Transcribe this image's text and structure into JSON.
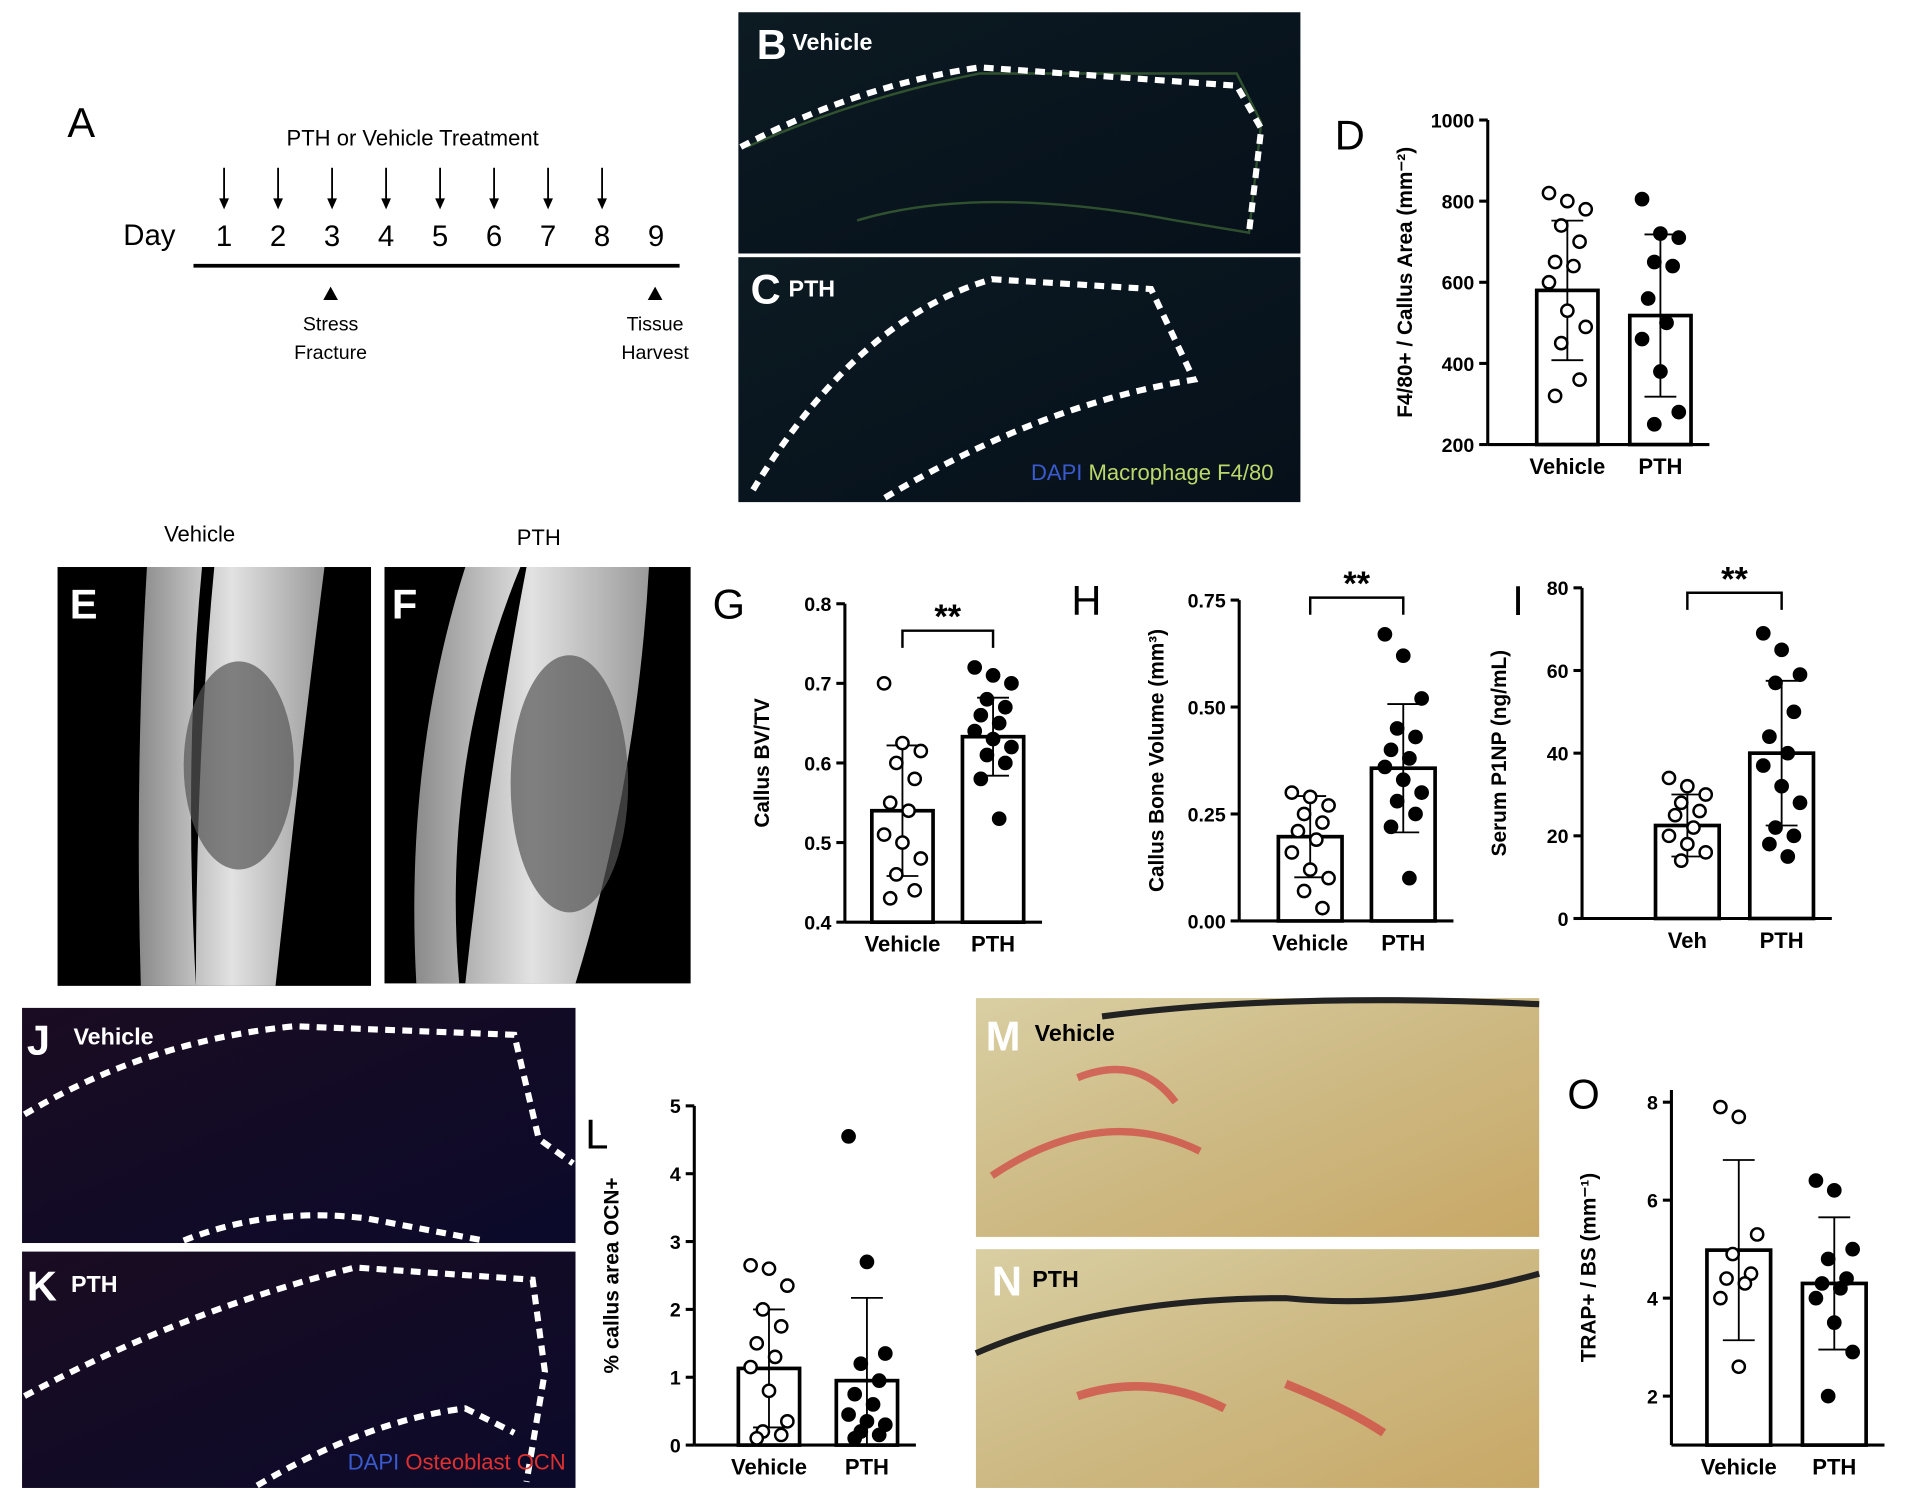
{
  "panels": {
    "A": {
      "letter": "A",
      "title": "PTH or Vehicle Treatment",
      "day_label": "Day",
      "days": [
        1,
        2,
        3,
        4,
        5,
        6,
        7,
        8,
        9
      ],
      "markers": [
        {
          "lines": [
            "Stress",
            "Fracture"
          ]
        },
        {
          "lines": [
            "Tissue",
            "Harvest"
          ]
        }
      ]
    },
    "B": {
      "letter": "B",
      "label": "Vehicle"
    },
    "C": {
      "letter": "C",
      "label": "PTH",
      "legend": [
        "DAPI",
        "Macrophage F4/80"
      ]
    },
    "E": {
      "letter": "E",
      "title": "Vehicle"
    },
    "F": {
      "letter": "F",
      "title": "PTH"
    },
    "J": {
      "letter": "J",
      "label": "Vehicle"
    },
    "K": {
      "letter": "K",
      "label": "PTH",
      "legend": [
        "DAPI",
        "Osteoblast OCN"
      ]
    },
    "M": {
      "letter": "M",
      "label": "Vehicle"
    },
    "N": {
      "letter": "N",
      "label": "PTH"
    }
  },
  "chart_data": [
    {
      "type": "bar",
      "panel": "D",
      "ylabel": "F4/80+ / Callus Area (mm⁻²)",
      "categories": [
        "Vehicle",
        "PTH"
      ],
      "values": [
        580,
        518
      ],
      "errors": [
        172,
        200
      ],
      "marker_fill": [
        "open",
        "filled"
      ],
      "points": [
        [
          820,
          800,
          780,
          740,
          700,
          650,
          640,
          600,
          530,
          490,
          450,
          360,
          320
        ],
        [
          805,
          720,
          710,
          650,
          640,
          560,
          500,
          460,
          380,
          280,
          250
        ]
      ],
      "ylim": [
        200,
        1000
      ],
      "yticks": [
        200,
        400,
        600,
        800,
        1000
      ]
    },
    {
      "type": "bar",
      "panel": "G",
      "ylabel": "Callus BV/TV",
      "categories": [
        "Vehicle",
        "PTH"
      ],
      "values": [
        0.54,
        0.633
      ],
      "errors": [
        0.082,
        0.049
      ],
      "marker_fill": [
        "open",
        "filled"
      ],
      "significance": "**",
      "points": [
        [
          0.7,
          0.625,
          0.615,
          0.6,
          0.58,
          0.55,
          0.54,
          0.51,
          0.5,
          0.48,
          0.46,
          0.44,
          0.43
        ],
        [
          0.72,
          0.71,
          0.7,
          0.68,
          0.67,
          0.66,
          0.65,
          0.64,
          0.63,
          0.62,
          0.61,
          0.6,
          0.58,
          0.53
        ]
      ],
      "ylim": [
        0.4,
        0.8
      ],
      "yticks": [
        0.4,
        0.5,
        0.6,
        0.7,
        0.8
      ]
    },
    {
      "type": "bar",
      "panel": "H",
      "ylabel": "Callus Bone Volume (mm³)",
      "categories": [
        "Vehicle",
        "PTH"
      ],
      "values": [
        0.197,
        0.357
      ],
      "errors": [
        0.095,
        0.15
      ],
      "marker_fill": [
        "open",
        "filled"
      ],
      "significance": "**",
      "points": [
        [
          0.3,
          0.29,
          0.27,
          0.25,
          0.23,
          0.21,
          0.19,
          0.16,
          0.12,
          0.1,
          0.07,
          0.03
        ],
        [
          0.67,
          0.62,
          0.52,
          0.45,
          0.43,
          0.4,
          0.38,
          0.36,
          0.33,
          0.3,
          0.28,
          0.25,
          0.22,
          0.1
        ]
      ],
      "ylim": [
        0,
        0.75
      ],
      "yticks": [
        {
          "value": 0,
          "label": "0.00"
        },
        {
          "value": 0.25,
          "label": "0.25"
        },
        {
          "value": 0.5,
          "label": "0.50"
        },
        {
          "value": 0.75,
          "label": "0.75"
        }
      ]
    },
    {
      "type": "bar",
      "panel": "I",
      "ylabel": "Serum P1NP (ng/mL)",
      "categories": [
        "Veh",
        "PTH"
      ],
      "values": [
        22.5,
        40
      ],
      "errors": [
        7.5,
        17.5
      ],
      "marker_fill": [
        "open",
        "filled"
      ],
      "significance": "**",
      "points": [
        [
          34,
          32,
          30,
          28,
          26,
          25,
          22,
          20,
          18,
          16,
          14
        ],
        [
          69,
          65,
          59,
          57,
          50,
          44,
          40,
          37,
          32,
          28,
          22,
          20,
          18,
          15
        ]
      ],
      "ylim": [
        0,
        80
      ],
      "yticks": [
        0,
        20,
        40,
        60,
        80
      ]
    },
    {
      "type": "bar",
      "panel": "L",
      "ylabel": "% callus area OCN+",
      "categories": [
        "Vehicle",
        "PTH"
      ],
      "values": [
        1.13,
        0.95
      ],
      "errors": [
        0.87,
        1.22
      ],
      "marker_fill": [
        "open",
        "filled"
      ],
      "points": [
        [
          2.65,
          2.6,
          2.35,
          2.0,
          1.75,
          1.5,
          1.3,
          1.15,
          0.8,
          0.35,
          0.2,
          0.15,
          0.1
        ],
        [
          4.55,
          2.7,
          1.35,
          1.2,
          0.95,
          0.75,
          0.6,
          0.45,
          0.35,
          0.3,
          0.2,
          0.15,
          0.1
        ]
      ],
      "ylim": [
        0,
        5
      ],
      "yticks": [
        0,
        1,
        2,
        3,
        4,
        5
      ]
    },
    {
      "type": "bar",
      "panel": "O",
      "ylabel": "TRAP+ / BS (mm⁻¹)",
      "categories": [
        "Vehicle",
        "PTH"
      ],
      "values": [
        4.98,
        4.3
      ],
      "errors": [
        1.84,
        1.35
      ],
      "marker_fill": [
        "open",
        "filled"
      ],
      "points": [
        [
          7.9,
          7.7,
          5.3,
          4.9,
          4.5,
          4.4,
          4.3,
          4.0,
          2.6
        ],
        [
          6.4,
          6.2,
          5.0,
          4.8,
          4.4,
          4.3,
          4.2,
          4.0,
          3.5,
          2.9,
          2.0
        ]
      ],
      "ylim": [
        1,
        8.25
      ],
      "yticks": [
        2,
        4,
        6,
        8
      ]
    }
  ]
}
